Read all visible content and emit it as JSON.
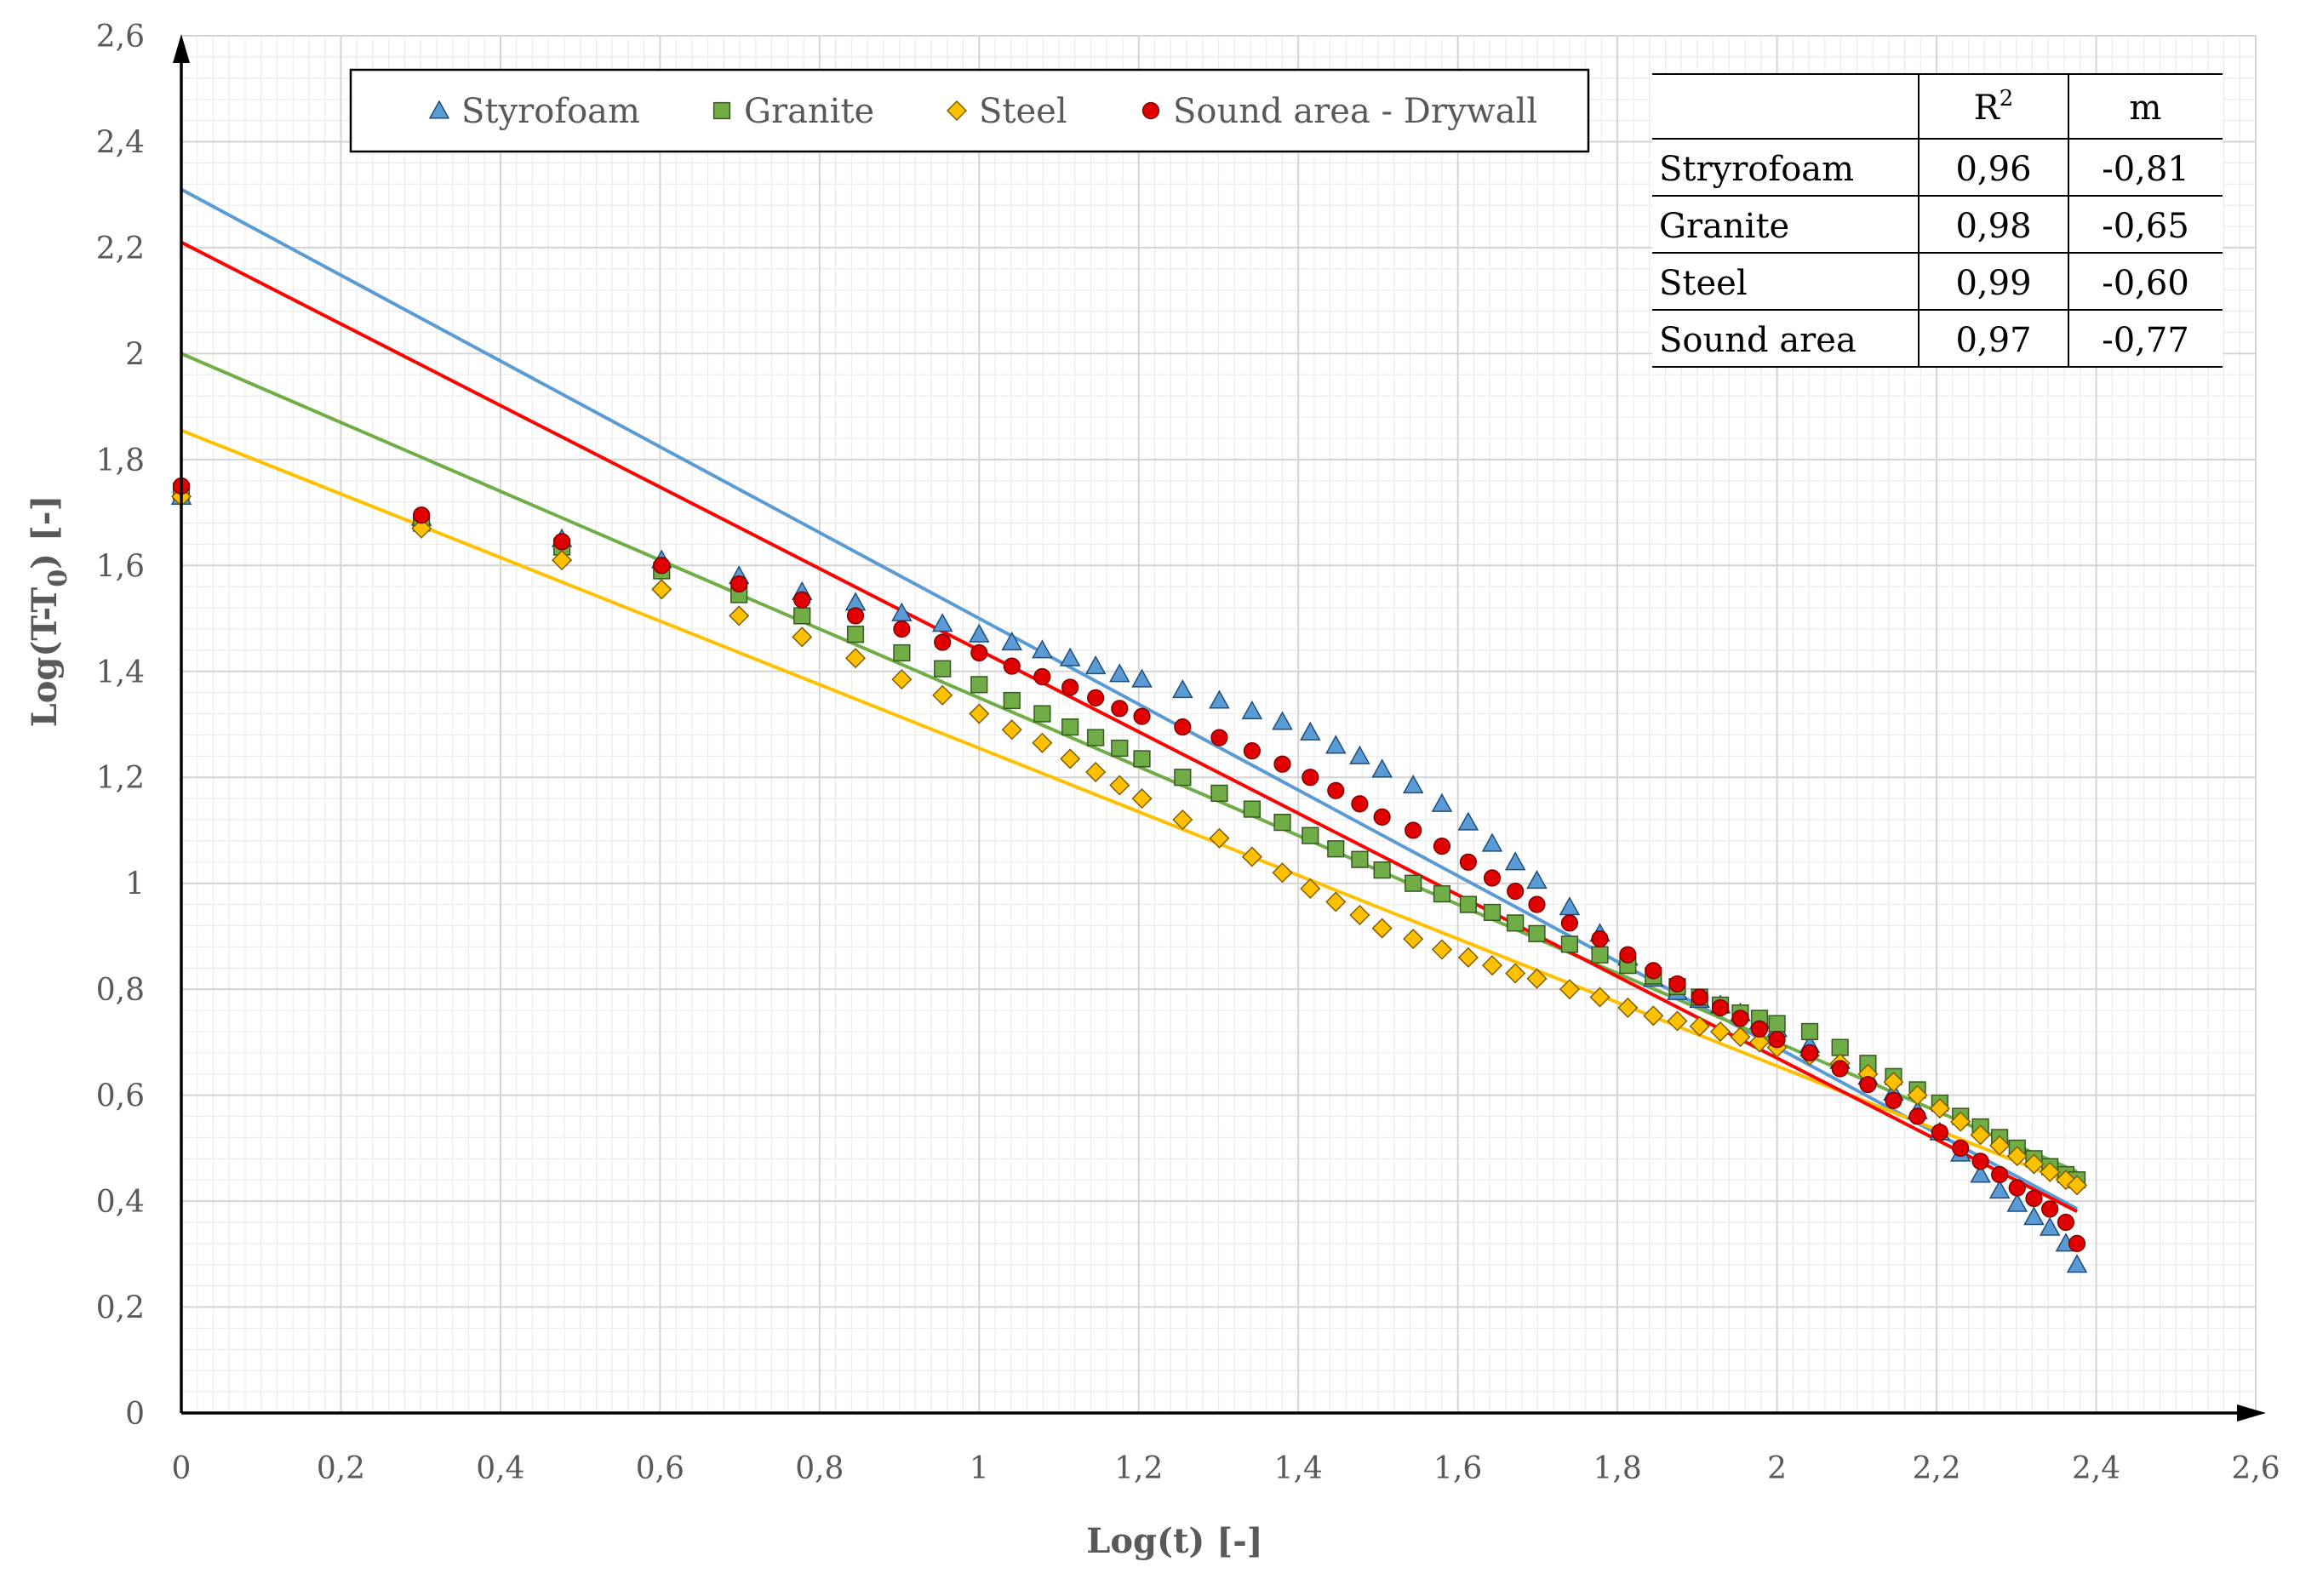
{
  "chart_data": {
    "type": "scatter",
    "title": "",
    "xlabel": "Log(t)  [-]",
    "ylabel_main": "Log(T-T",
    "ylabel_sub": "0",
    "ylabel_tail": ") [-]",
    "xlim": [
      0,
      2.6
    ],
    "ylim": [
      0,
      2.6
    ],
    "x_ticks": [
      "0",
      "0,2",
      "0,4",
      "0,6",
      "0,8",
      "1",
      "1,2",
      "1,4",
      "1,6",
      "1,8",
      "2",
      "2,2",
      "2,4",
      "2,6"
    ],
    "y_ticks": [
      "0",
      "0,2",
      "0,4",
      "0,6",
      "0,8",
      "1",
      "1,2",
      "1,4",
      "1,6",
      "1,8",
      "2",
      "2,2",
      "2,4",
      "2,6"
    ],
    "grid": true,
    "legend_position": "top-left",
    "series": [
      {
        "name": "Styrofoam",
        "marker": "triangle",
        "color": "#5b9bd5",
        "line_color": "#5b9bd5",
        "fit": {
          "intercept": 2.31,
          "slope": -0.81
        },
        "points": [
          [
            0,
            1.73
          ],
          [
            0.301,
            1.69
          ],
          [
            0.477,
            1.65
          ],
          [
            0.602,
            1.61
          ],
          [
            0.699,
            1.58
          ],
          [
            0.778,
            1.55
          ],
          [
            0.845,
            1.53
          ],
          [
            0.903,
            1.51
          ],
          [
            0.954,
            1.49
          ],
          [
            1.0,
            1.47
          ],
          [
            1.041,
            1.455
          ],
          [
            1.079,
            1.44
          ],
          [
            1.114,
            1.425
          ],
          [
            1.146,
            1.41
          ],
          [
            1.176,
            1.395
          ],
          [
            1.204,
            1.385
          ],
          [
            1.255,
            1.365
          ],
          [
            1.301,
            1.345
          ],
          [
            1.342,
            1.325
          ],
          [
            1.38,
            1.305
          ],
          [
            1.415,
            1.285
          ],
          [
            1.447,
            1.26
          ],
          [
            1.477,
            1.24
          ],
          [
            1.505,
            1.215
          ],
          [
            1.544,
            1.185
          ],
          [
            1.58,
            1.15
          ],
          [
            1.613,
            1.115
          ],
          [
            1.643,
            1.075
          ],
          [
            1.672,
            1.04
          ],
          [
            1.699,
            1.005
          ],
          [
            1.74,
            0.955
          ],
          [
            1.778,
            0.905
          ],
          [
            1.813,
            0.86
          ],
          [
            1.845,
            0.82
          ],
          [
            1.875,
            0.795
          ],
          [
            1.903,
            0.78
          ],
          [
            1.929,
            0.77
          ],
          [
            1.954,
            0.755
          ],
          [
            1.978,
            0.74
          ],
          [
            2.0,
            0.725
          ],
          [
            2.041,
            0.695
          ],
          [
            2.079,
            0.665
          ],
          [
            2.114,
            0.635
          ],
          [
            2.146,
            0.605
          ],
          [
            2.176,
            0.57
          ],
          [
            2.204,
            0.53
          ],
          [
            2.23,
            0.49
          ],
          [
            2.255,
            0.45
          ],
          [
            2.279,
            0.42
          ],
          [
            2.301,
            0.395
          ],
          [
            2.322,
            0.37
          ],
          [
            2.342,
            0.35
          ],
          [
            2.362,
            0.32
          ],
          [
            2.376,
            0.28
          ]
        ]
      },
      {
        "name": "Granite",
        "marker": "square",
        "color": "#70ad47",
        "line_color": "#70ad47",
        "fit": {
          "intercept": 2.0,
          "slope": -0.65
        },
        "points": [
          [
            0,
            1.74
          ],
          [
            0.301,
            1.68
          ],
          [
            0.477,
            1.635
          ],
          [
            0.602,
            1.59
          ],
          [
            0.699,
            1.545
          ],
          [
            0.778,
            1.505
          ],
          [
            0.845,
            1.47
          ],
          [
            0.903,
            1.435
          ],
          [
            0.954,
            1.405
          ],
          [
            1.0,
            1.375
          ],
          [
            1.041,
            1.345
          ],
          [
            1.079,
            1.32
          ],
          [
            1.114,
            1.295
          ],
          [
            1.146,
            1.275
          ],
          [
            1.176,
            1.255
          ],
          [
            1.204,
            1.235
          ],
          [
            1.255,
            1.2
          ],
          [
            1.301,
            1.17
          ],
          [
            1.342,
            1.14
          ],
          [
            1.38,
            1.115
          ],
          [
            1.415,
            1.09
          ],
          [
            1.447,
            1.065
          ],
          [
            1.477,
            1.045
          ],
          [
            1.505,
            1.025
          ],
          [
            1.544,
            1.0
          ],
          [
            1.58,
            0.98
          ],
          [
            1.613,
            0.96
          ],
          [
            1.643,
            0.945
          ],
          [
            1.672,
            0.925
          ],
          [
            1.699,
            0.905
          ],
          [
            1.74,
            0.885
          ],
          [
            1.778,
            0.865
          ],
          [
            1.813,
            0.845
          ],
          [
            1.845,
            0.825
          ],
          [
            1.875,
            0.805
          ],
          [
            1.903,
            0.785
          ],
          [
            1.929,
            0.77
          ],
          [
            1.954,
            0.755
          ],
          [
            1.978,
            0.745
          ],
          [
            2.0,
            0.735
          ],
          [
            2.041,
            0.72
          ],
          [
            2.079,
            0.69
          ],
          [
            2.114,
            0.66
          ],
          [
            2.146,
            0.635
          ],
          [
            2.176,
            0.61
          ],
          [
            2.204,
            0.585
          ],
          [
            2.23,
            0.56
          ],
          [
            2.255,
            0.54
          ],
          [
            2.279,
            0.52
          ],
          [
            2.301,
            0.5
          ],
          [
            2.322,
            0.48
          ],
          [
            2.342,
            0.465
          ],
          [
            2.362,
            0.45
          ],
          [
            2.376,
            0.44
          ]
        ]
      },
      {
        "name": "Steel",
        "marker": "diamond",
        "color": "#ffc000",
        "line_color": "#ffc000",
        "fit": {
          "intercept": 1.855,
          "slope": -0.6
        },
        "points": [
          [
            0,
            1.73
          ],
          [
            0.301,
            1.67
          ],
          [
            0.477,
            1.61
          ],
          [
            0.602,
            1.555
          ],
          [
            0.699,
            1.505
          ],
          [
            0.778,
            1.465
          ],
          [
            0.845,
            1.425
          ],
          [
            0.903,
            1.385
          ],
          [
            0.954,
            1.355
          ],
          [
            1.0,
            1.32
          ],
          [
            1.041,
            1.29
          ],
          [
            1.079,
            1.265
          ],
          [
            1.114,
            1.235
          ],
          [
            1.146,
            1.21
          ],
          [
            1.176,
            1.185
          ],
          [
            1.204,
            1.16
          ],
          [
            1.255,
            1.12
          ],
          [
            1.301,
            1.085
          ],
          [
            1.342,
            1.05
          ],
          [
            1.38,
            1.02
          ],
          [
            1.415,
            0.99
          ],
          [
            1.447,
            0.965
          ],
          [
            1.477,
            0.94
          ],
          [
            1.505,
            0.915
          ],
          [
            1.544,
            0.895
          ],
          [
            1.58,
            0.875
          ],
          [
            1.613,
            0.86
          ],
          [
            1.643,
            0.845
          ],
          [
            1.672,
            0.83
          ],
          [
            1.699,
            0.82
          ],
          [
            1.74,
            0.8
          ],
          [
            1.778,
            0.785
          ],
          [
            1.813,
            0.765
          ],
          [
            1.845,
            0.75
          ],
          [
            1.875,
            0.74
          ],
          [
            1.903,
            0.73
          ],
          [
            1.929,
            0.72
          ],
          [
            1.954,
            0.71
          ],
          [
            1.978,
            0.7
          ],
          [
            2.0,
            0.69
          ],
          [
            2.041,
            0.675
          ],
          [
            2.079,
            0.66
          ],
          [
            2.114,
            0.64
          ],
          [
            2.146,
            0.625
          ],
          [
            2.176,
            0.6
          ],
          [
            2.204,
            0.575
          ],
          [
            2.23,
            0.55
          ],
          [
            2.255,
            0.525
          ],
          [
            2.279,
            0.505
          ],
          [
            2.301,
            0.485
          ],
          [
            2.322,
            0.47
          ],
          [
            2.342,
            0.455
          ],
          [
            2.362,
            0.44
          ],
          [
            2.376,
            0.43
          ]
        ]
      },
      {
        "name": "Sound area - Drywall",
        "marker": "circle",
        "color": "#e00000",
        "line_color": "#ff0000",
        "fit": {
          "intercept": 2.21,
          "slope": -0.77
        },
        "points": [
          [
            0,
            1.75
          ],
          [
            0.301,
            1.695
          ],
          [
            0.477,
            1.645
          ],
          [
            0.602,
            1.6
          ],
          [
            0.699,
            1.565
          ],
          [
            0.778,
            1.535
          ],
          [
            0.845,
            1.505
          ],
          [
            0.903,
            1.48
          ],
          [
            0.954,
            1.455
          ],
          [
            1.0,
            1.435
          ],
          [
            1.041,
            1.41
          ],
          [
            1.079,
            1.39
          ],
          [
            1.114,
            1.37
          ],
          [
            1.146,
            1.35
          ],
          [
            1.176,
            1.33
          ],
          [
            1.204,
            1.315
          ],
          [
            1.255,
            1.295
          ],
          [
            1.301,
            1.275
          ],
          [
            1.342,
            1.25
          ],
          [
            1.38,
            1.225
          ],
          [
            1.415,
            1.2
          ],
          [
            1.447,
            1.175
          ],
          [
            1.477,
            1.15
          ],
          [
            1.505,
            1.125
          ],
          [
            1.544,
            1.1
          ],
          [
            1.58,
            1.07
          ],
          [
            1.613,
            1.04
          ],
          [
            1.643,
            1.01
          ],
          [
            1.672,
            0.985
          ],
          [
            1.699,
            0.96
          ],
          [
            1.74,
            0.925
          ],
          [
            1.778,
            0.895
          ],
          [
            1.813,
            0.865
          ],
          [
            1.845,
            0.835
          ],
          [
            1.875,
            0.81
          ],
          [
            1.903,
            0.785
          ],
          [
            1.929,
            0.765
          ],
          [
            1.954,
            0.745
          ],
          [
            1.978,
            0.725
          ],
          [
            2.0,
            0.705
          ],
          [
            2.041,
            0.68
          ],
          [
            2.079,
            0.65
          ],
          [
            2.114,
            0.62
          ],
          [
            2.146,
            0.59
          ],
          [
            2.176,
            0.56
          ],
          [
            2.204,
            0.53
          ],
          [
            2.23,
            0.5
          ],
          [
            2.255,
            0.475
          ],
          [
            2.279,
            0.45
          ],
          [
            2.301,
            0.425
          ],
          [
            2.322,
            0.405
          ],
          [
            2.342,
            0.385
          ],
          [
            2.362,
            0.36
          ],
          [
            2.376,
            0.32
          ]
        ]
      }
    ],
    "table": {
      "headers": [
        "",
        "R",
        "m"
      ],
      "header_sup": "2",
      "rows": [
        [
          "Stryrofoam",
          "0,96",
          "-0,81"
        ],
        [
          "Granite",
          "0,98",
          "-0,65"
        ],
        [
          "Steel",
          "0,99",
          "-0,60"
        ],
        [
          "Sound area",
          "0,97",
          "-0,77"
        ]
      ]
    }
  }
}
